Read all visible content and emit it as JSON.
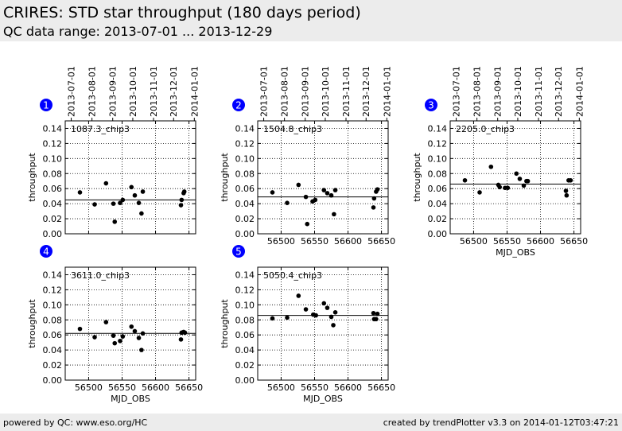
{
  "header": {
    "title": "CRIRES: STD star throughput (180 days period)",
    "subtitle": "QC data range: 2013-07-01 ... 2013-12-29"
  },
  "footer": {
    "left": "powered by QC: www.eso.org/HC",
    "right": "created by trendPlotter v3.3 on 2014-01-12T03:47:21"
  },
  "colors": {
    "marker": "#000000",
    "badge": "#0000ff",
    "grid": "#000000"
  },
  "chart_data": [
    {
      "type": "scatter",
      "badge": "1",
      "label": "1087.3_chip3",
      "xlabel": "",
      "ylabel": "throughput",
      "xlim": [
        56465,
        56660
      ],
      "ylim": [
        0,
        0.15
      ],
      "xticks": [
        56500,
        56550,
        56600,
        56650
      ],
      "yticks": [
        0.0,
        0.02,
        0.04,
        0.06,
        0.08,
        0.1,
        0.12,
        0.14
      ],
      "top_axis_labels": [
        "2013-07-01",
        "2013-08-01",
        "2013-09-01",
        "2013-10-01",
        "2013-11-01",
        "2013-12-01",
        "2014-01-01"
      ],
      "top_axis_mjd": [
        56474,
        56505,
        56536,
        56566,
        56597,
        56627,
        56658
      ],
      "show_xticklabels": false,
      "reference_line": 0.045,
      "x": [
        56487,
        56509,
        56526,
        56537,
        56539,
        56547,
        56551,
        56564,
        56569,
        56575,
        56579,
        56581,
        56638,
        56639,
        56642,
        56643
      ],
      "y": [
        0.055,
        0.039,
        0.067,
        0.04,
        0.016,
        0.041,
        0.045,
        0.062,
        0.051,
        0.041,
        0.027,
        0.056,
        0.038,
        0.045,
        0.054,
        0.056
      ]
    },
    {
      "type": "scatter",
      "badge": "2",
      "label": "1504.8_chip3",
      "xlabel": "",
      "ylabel": "throughput",
      "xlim": [
        56465,
        56660
      ],
      "ylim": [
        0,
        0.15
      ],
      "xticks": [
        56500,
        56550,
        56600,
        56650
      ],
      "yticks": [
        0.0,
        0.02,
        0.04,
        0.06,
        0.08,
        0.1,
        0.12,
        0.14
      ],
      "top_axis_labels": [
        "2013-07-01",
        "2013-08-01",
        "2013-09-01",
        "2013-10-01",
        "2013-11-01",
        "2013-12-01",
        "2014-01-01"
      ],
      "top_axis_mjd": [
        56474,
        56505,
        56536,
        56566,
        56597,
        56627,
        56658
      ],
      "show_xticklabels": true,
      "reference_line": 0.049,
      "x": [
        56487,
        56509,
        56526,
        56537,
        56539,
        56547,
        56551,
        56564,
        56569,
        56575,
        56579,
        56581,
        56638,
        56639,
        56642,
        56644
      ],
      "y": [
        0.055,
        0.041,
        0.065,
        0.049,
        0.013,
        0.043,
        0.045,
        0.058,
        0.054,
        0.051,
        0.026,
        0.058,
        0.035,
        0.047,
        0.056,
        0.059
      ]
    },
    {
      "type": "scatter",
      "badge": "3",
      "label": "2205.0_chip3",
      "xlabel": "MJD_OBS",
      "ylabel": "throughput",
      "xlim": [
        56465,
        56660
      ],
      "ylim": [
        0,
        0.15
      ],
      "xticks": [
        56500,
        56550,
        56600,
        56650
      ],
      "yticks": [
        0.0,
        0.02,
        0.04,
        0.06,
        0.08,
        0.1,
        0.12,
        0.14
      ],
      "top_axis_labels": [
        "2013-07-01",
        "2013-08-01",
        "2013-09-01",
        "2013-10-01",
        "2013-11-01",
        "2013-12-01",
        "2014-01-01"
      ],
      "top_axis_mjd": [
        56474,
        56505,
        56536,
        56566,
        56597,
        56627,
        56658
      ],
      "show_xticklabels": true,
      "reference_line": 0.066,
      "x": [
        56487,
        56509,
        56526,
        56537,
        56539,
        56547,
        56551,
        56564,
        56569,
        56575,
        56579,
        56581,
        56638,
        56639,
        56642,
        56645
      ],
      "y": [
        0.071,
        0.055,
        0.089,
        0.065,
        0.062,
        0.061,
        0.061,
        0.08,
        0.073,
        0.064,
        0.07,
        0.07,
        0.057,
        0.051,
        0.071,
        0.071
      ]
    },
    {
      "type": "scatter",
      "badge": "4",
      "label": "3611.0_chip3",
      "xlabel": "MJD_OBS",
      "ylabel": "throughput",
      "xlim": [
        56465,
        56660
      ],
      "ylim": [
        0,
        0.15
      ],
      "xticks": [
        56500,
        56550,
        56600,
        56650
      ],
      "yticks": [
        0.0,
        0.02,
        0.04,
        0.06,
        0.08,
        0.1,
        0.12,
        0.14
      ],
      "top_axis_labels": [],
      "top_axis_mjd": [],
      "show_xticklabels": true,
      "reference_line": 0.062,
      "x": [
        56487,
        56509,
        56526,
        56537,
        56539,
        56547,
        56551,
        56564,
        56569,
        56575,
        56579,
        56581,
        56638,
        56639,
        56642,
        56644
      ],
      "y": [
        0.068,
        0.057,
        0.077,
        0.059,
        0.049,
        0.052,
        0.058,
        0.071,
        0.065,
        0.056,
        0.04,
        0.062,
        0.054,
        0.063,
        0.064,
        0.063
      ]
    },
    {
      "type": "scatter",
      "badge": "5",
      "label": "5050.4_chip3",
      "xlabel": "MJD_OBS",
      "ylabel": "throughput",
      "xlim": [
        56465,
        56660
      ],
      "ylim": [
        0,
        0.15
      ],
      "xticks": [
        56500,
        56550,
        56600,
        56650
      ],
      "yticks": [
        0.0,
        0.02,
        0.04,
        0.06,
        0.08,
        0.1,
        0.12,
        0.14
      ],
      "top_axis_labels": [],
      "top_axis_mjd": [],
      "show_xticklabels": true,
      "reference_line": 0.086,
      "x": [
        56487,
        56509,
        56526,
        56537,
        56548,
        56552,
        56564,
        56569,
        56575,
        56578,
        56581,
        56638,
        56639,
        56642,
        56644
      ],
      "y": [
        0.082,
        0.083,
        0.112,
        0.094,
        0.087,
        0.086,
        0.102,
        0.096,
        0.084,
        0.073,
        0.09,
        0.089,
        0.081,
        0.081,
        0.088
      ]
    }
  ]
}
